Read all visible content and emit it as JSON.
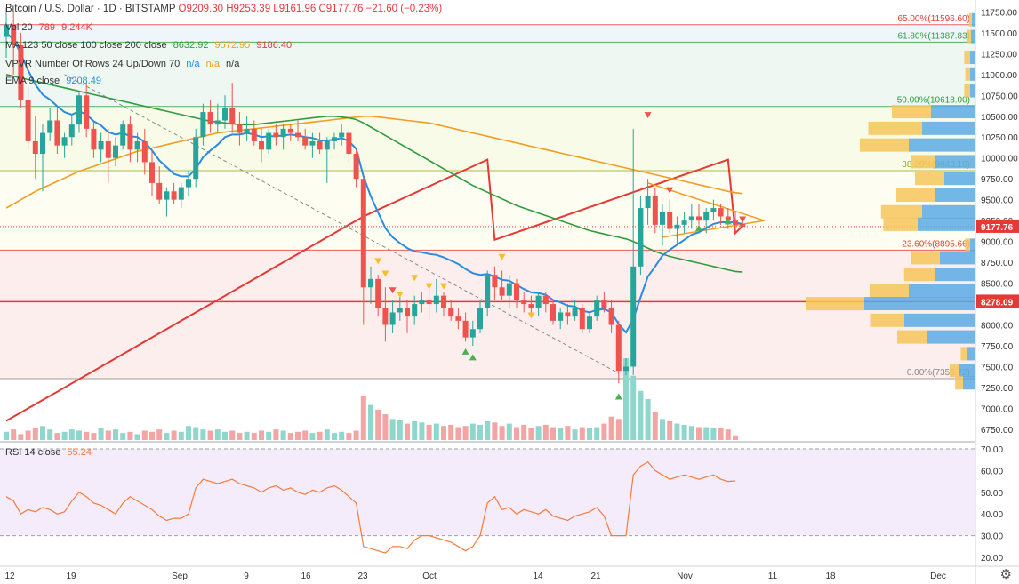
{
  "header": {
    "symbol": "Bitcoin / U.S. Dollar · 1D · BITSTAMP",
    "open": "O9209.30",
    "high": "H9253.39",
    "low": "L9161.96",
    "close": "C9177.76",
    "change": "−21.60 (−0.23%)"
  },
  "legends": {
    "vol": {
      "label": "Vol 20",
      "v1": "789",
      "v2": "9.244K"
    },
    "ma": {
      "label": "MA 123 50 close 100 close 200 close",
      "v1": "8632.92",
      "v2": "9572.95",
      "v3": "9186.40"
    },
    "vpvr": {
      "label": "VPVR Number Of Rows 24 Up/Down 70",
      "v1": "n/a",
      "v2": "n/a",
      "v3": "n/a"
    },
    "ema": {
      "label": "EMA 9 close",
      "v1": "9208.49"
    },
    "rsi": {
      "label": "RSI 14 close",
      "v1": "55.24"
    }
  },
  "colors": {
    "up": "#26a69a",
    "down": "#ef5350",
    "ma200": "#e53935",
    "ma100": "#f39c22",
    "ma50": "#2e9c3e",
    "ema": "#2a8ce0",
    "rsi": "#f57c3b"
  },
  "chart_data": {
    "type": "candlestick",
    "y_ticks": [
      "11750.00",
      "11500.00",
      "11250.00",
      "11000.00",
      "10750.00",
      "10500.00",
      "10250.00",
      "10000.00",
      "9750.00",
      "9500.00",
      "9250.00",
      "9000.00",
      "8750.00",
      "8500.00",
      "8250.00",
      "8000.00",
      "7750.00",
      "7500.00",
      "7250.00",
      "7000.00",
      "6750.00"
    ],
    "rsi_ticks": [
      "70.00",
      "60.00",
      "50.00",
      "40.00",
      "30.00",
      "20.00"
    ],
    "x_ticks": [
      "12",
      "19",
      "Sep",
      "9",
      "16",
      "23",
      "Oct",
      "14",
      "21",
      "Nov",
      "11",
      "18",
      "Dec"
    ],
    "fib_levels": [
      {
        "label": "65.00%(11596.60)",
        "price": 11596.6,
        "color": "#e53935"
      },
      {
        "label": "61.80%(11387.83)",
        "price": 11387.83,
        "color": "#2e9c3e"
      },
      {
        "label": "50.00%(10618.00)",
        "price": 10618.0,
        "color": "#2e9c3e"
      },
      {
        "label": "38.20%(9848.16)",
        "price": 9848.16,
        "color": "#9aa82a"
      },
      {
        "label": "23.60%(8895.66)",
        "price": 8895.66,
        "color": "#e53935"
      },
      {
        "label": "0.00%(7356.72)",
        "price": 7356.72,
        "color": "#888888"
      }
    ],
    "price_labels": [
      {
        "text": "9177.76",
        "price": 9177.76,
        "color": "#e53935"
      },
      {
        "text": "8278.09",
        "price": 8278.09,
        "color": "#e53935"
      }
    ],
    "candles": [
      [
        11450,
        11800,
        11200,
        11600
      ],
      [
        11600,
        11750,
        11000,
        11350
      ],
      [
        11350,
        11500,
        10600,
        10700
      ],
      [
        10700,
        10850,
        10100,
        10200
      ],
      [
        10200,
        10500,
        9750,
        10050
      ],
      [
        10050,
        10400,
        9600,
        10300
      ],
      [
        10300,
        10600,
        10200,
        10450
      ],
      [
        10450,
        10600,
        10050,
        10150
      ],
      [
        10150,
        10300,
        10000,
        10250
      ],
      [
        10250,
        10500,
        10150,
        10400
      ],
      [
        10400,
        10800,
        10300,
        10750
      ],
      [
        10750,
        10900,
        10250,
        10350
      ],
      [
        10350,
        10450,
        10000,
        10100
      ],
      [
        10100,
        10300,
        9950,
        10200
      ],
      [
        10200,
        10350,
        9700,
        10000
      ],
      [
        10000,
        10250,
        9900,
        10150
      ],
      [
        10150,
        10450,
        10100,
        10400
      ],
      [
        10400,
        10500,
        9950,
        10100
      ],
      [
        10100,
        10300,
        9950,
        10200
      ],
      [
        10200,
        10350,
        9800,
        9950
      ],
      [
        9950,
        10100,
        9550,
        9700
      ],
      [
        9700,
        9900,
        9450,
        9500
      ],
      [
        9500,
        9650,
        9300,
        9600
      ],
      [
        9600,
        9700,
        9450,
        9500
      ],
      [
        9500,
        9700,
        9400,
        9650
      ],
      [
        9650,
        9850,
        9550,
        9750
      ],
      [
        9750,
        10350,
        9650,
        10250
      ],
      [
        10250,
        10650,
        10150,
        10550
      ],
      [
        10550,
        10700,
        10300,
        10400
      ],
      [
        10400,
        10650,
        10300,
        10450
      ],
      [
        10450,
        10750,
        10350,
        10600
      ],
      [
        10600,
        10900,
        10300,
        10400
      ],
      [
        10400,
        10550,
        10150,
        10300
      ],
      [
        10300,
        10500,
        10200,
        10350
      ],
      [
        10350,
        10450,
        10150,
        10200
      ],
      [
        10200,
        10350,
        9950,
        10100
      ],
      [
        10100,
        10350,
        10050,
        10300
      ],
      [
        10300,
        10400,
        10150,
        10250
      ],
      [
        10250,
        10400,
        10100,
        10350
      ],
      [
        10350,
        10400,
        10200,
        10300
      ],
      [
        10300,
        10450,
        10200,
        10250
      ],
      [
        10250,
        10350,
        10100,
        10150
      ],
      [
        10150,
        10300,
        10000,
        10200
      ],
      [
        10200,
        10300,
        10050,
        10100
      ],
      [
        10100,
        10250,
        9700,
        10200
      ],
      [
        10200,
        10300,
        10100,
        10250
      ],
      [
        10250,
        10400,
        10150,
        10300
      ],
      [
        10300,
        10350,
        9950,
        10050
      ],
      [
        10050,
        10100,
        9650,
        9750
      ],
      [
        9750,
        9800,
        8000,
        8450
      ],
      [
        8450,
        8700,
        8250,
        8550
      ],
      [
        8550,
        8600,
        8100,
        8200
      ],
      [
        8200,
        8450,
        7800,
        8000
      ],
      [
        8000,
        8300,
        7900,
        8150
      ],
      [
        8150,
        8400,
        8050,
        8200
      ],
      [
        8200,
        8300,
        7900,
        8100
      ],
      [
        8100,
        8350,
        8000,
        8250
      ],
      [
        8250,
        8400,
        8150,
        8300
      ],
      [
        8300,
        8450,
        8050,
        8250
      ],
      [
        8250,
        8550,
        8150,
        8350
      ],
      [
        8350,
        8400,
        8100,
        8200
      ],
      [
        8200,
        8300,
        8050,
        8100
      ],
      [
        8100,
        8200,
        7950,
        8050
      ],
      [
        8050,
        8150,
        7800,
        7850
      ],
      [
        7850,
        8050,
        7750,
        7950
      ],
      [
        7950,
        8300,
        7900,
        8200
      ],
      [
        8200,
        8650,
        8100,
        8600
      ],
      [
        8600,
        8700,
        8300,
        8450
      ],
      [
        8450,
        8650,
        8300,
        8350
      ],
      [
        8350,
        8600,
        8200,
        8500
      ],
      [
        8500,
        8550,
        8200,
        8300
      ],
      [
        8300,
        8400,
        8150,
        8250
      ],
      [
        8250,
        8350,
        8150,
        8200
      ],
      [
        8200,
        8400,
        8100,
        8350
      ],
      [
        8350,
        8400,
        8150,
        8250
      ],
      [
        8250,
        8300,
        8000,
        8050
      ],
      [
        8050,
        8200,
        7950,
        8150
      ],
      [
        8150,
        8250,
        8000,
        8100
      ],
      [
        8100,
        8300,
        8050,
        8200
      ],
      [
        8200,
        8250,
        7900,
        7950
      ],
      [
        7950,
        8150,
        7900,
        8100
      ],
      [
        8100,
        8350,
        8050,
        8300
      ],
      [
        8300,
        8400,
        8150,
        8200
      ],
      [
        8200,
        8300,
        7900,
        8000
      ],
      [
        8000,
        8050,
        7300,
        7450
      ],
      [
        7450,
        7600,
        7400,
        7500
      ],
      [
        7500,
        10350,
        7400,
        8700
      ],
      [
        8700,
        9550,
        8600,
        9400
      ],
      [
        9400,
        9750,
        9200,
        9550
      ],
      [
        9550,
        9650,
        9100,
        9200
      ],
      [
        9200,
        9450,
        8950,
        9350
      ],
      [
        9350,
        9500,
        9100,
        9150
      ],
      [
        9150,
        9300,
        8950,
        9200
      ],
      [
        9200,
        9350,
        9100,
        9250
      ],
      [
        9250,
        9450,
        9150,
        9300
      ],
      [
        9300,
        9450,
        9200,
        9250
      ],
      [
        9250,
        9400,
        9100,
        9350
      ],
      [
        9350,
        9500,
        9250,
        9400
      ],
      [
        9400,
        9450,
        9200,
        9300
      ],
      [
        9300,
        9400,
        9150,
        9250
      ],
      [
        9250,
        9350,
        9100,
        9200
      ],
      [
        9209.3,
        9253.39,
        9161.96,
        9177.76
      ]
    ],
    "volumes": [
      7,
      9,
      5,
      8,
      10,
      12,
      9,
      6,
      7,
      9,
      8,
      7,
      6,
      10,
      8,
      9,
      6,
      7,
      5,
      8,
      7,
      9,
      6,
      8,
      7,
      12,
      11,
      9,
      8,
      9,
      7,
      8,
      6,
      7,
      6,
      8,
      7,
      9,
      8,
      6,
      7,
      8,
      6,
      7,
      9,
      6,
      7,
      6,
      8,
      38,
      30,
      26,
      22,
      18,
      17,
      14,
      16,
      15,
      13,
      14,
      12,
      13,
      11,
      12,
      14,
      13,
      16,
      15,
      12,
      14,
      11,
      13,
      10,
      12,
      13,
      11,
      10,
      12,
      9,
      11,
      10,
      11,
      14,
      20,
      18,
      70,
      55,
      42,
      35,
      24,
      18,
      16,
      14,
      13,
      12,
      11,
      11,
      10,
      10,
      9,
      4
    ],
    "rsi": [
      48,
      46,
      40,
      42,
      41,
      43,
      42,
      40,
      41,
      46,
      50,
      48,
      45,
      44,
      42,
      40,
      45,
      48,
      46,
      44,
      42,
      39,
      37,
      38,
      38,
      40,
      52,
      56,
      55,
      54,
      55,
      56,
      54,
      53,
      52,
      50,
      52,
      53,
      51,
      52,
      50,
      49,
      51,
      50,
      52,
      53,
      51,
      48,
      45,
      25,
      24,
      23,
      22,
      25,
      25,
      24,
      28,
      30,
      30,
      29,
      28,
      27,
      25,
      23,
      25,
      30,
      45,
      48,
      42,
      43,
      40,
      42,
      41,
      40,
      42,
      39,
      38,
      37,
      39,
      40,
      41,
      43,
      39,
      30,
      30,
      30,
      58,
      62,
      64,
      60,
      58,
      56,
      57,
      58,
      57,
      56,
      57,
      58,
      56,
      55,
      55.24
    ],
    "ema9": [
      11500,
      11420,
      11250,
      11050,
      10880,
      10760,
      10700,
      10620,
      10550,
      10520,
      10560,
      10520,
      10440,
      10390,
      10310,
      10280,
      10300,
      10260,
      10250,
      10190,
      10090,
      9970,
      9890,
      9810,
      9780,
      9780,
      9870,
      10010,
      10090,
      10160,
      10250,
      10280,
      10280,
      10300,
      10280,
      10250,
      10260,
      10260,
      10270,
      10280,
      10270,
      10250,
      10240,
      10210,
      10210,
      10220,
      10240,
      10200,
      10110,
      9780,
      9540,
      9350,
      9160,
      9050,
      8980,
      8920,
      8880,
      8870,
      8850,
      8840,
      8810,
      8770,
      8730,
      8670,
      8620,
      8600,
      8610,
      8580,
      8540,
      8530,
      8480,
      8430,
      8390,
      8380,
      8360,
      8300,
      8270,
      8230,
      8220,
      8170,
      8150,
      8180,
      8190,
      8150,
      8010,
      7910,
      8070,
      8330,
      8580,
      8700,
      8830,
      8900,
      8960,
      9020,
      9080,
      9110,
      9160,
      9210,
      9230,
      9230,
      9230,
      9208.49
    ],
    "ma50": [
      11000,
      10980,
      10960,
      10940,
      10920,
      10900,
      10880,
      10860,
      10840,
      10820,
      10800,
      10780,
      10760,
      10740,
      10720,
      10700,
      10680,
      10660,
      10640,
      10620,
      10600,
      10580,
      10560,
      10540,
      10520,
      10500,
      10480,
      10460,
      10440,
      10430,
      10420,
      10410,
      10400,
      10400,
      10400,
      10410,
      10420,
      10430,
      10440,
      10450,
      10460,
      10470,
      10480,
      10490,
      10500,
      10500,
      10490,
      10480,
      10460,
      10420,
      10370,
      10320,
      10270,
      10220,
      10170,
      10120,
      10070,
      10020,
      9970,
      9920,
      9870,
      9820,
      9770,
      9720,
      9670,
      9630,
      9590,
      9550,
      9510,
      9470,
      9430,
      9400,
      9370,
      9340,
      9310,
      9280,
      9250,
      9220,
      9190,
      9160,
      9130,
      9110,
      9090,
      9070,
      9050,
      9030,
      9000,
      8960,
      8920,
      8880,
      8850,
      8820,
      8800,
      8780,
      8760,
      8740,
      8720,
      8700,
      8680,
      8660,
      8640,
      8632.92
    ],
    "ma100": [
      9400,
      9450,
      9500,
      9550,
      9600,
      9640,
      9680,
      9720,
      9760,
      9800,
      9840,
      9870,
      9900,
      9930,
      9960,
      9990,
      10020,
      10050,
      10080,
      10100,
      10120,
      10140,
      10160,
      10180,
      10200,
      10220,
      10240,
      10260,
      10280,
      10300,
      10310,
      10320,
      10330,
      10340,
      10350,
      10360,
      10370,
      10380,
      10390,
      10400,
      10410,
      10420,
      10430,
      10440,
      10450,
      10460,
      10470,
      10480,
      10490,
      10500,
      10500,
      10490,
      10480,
      10470,
      10460,
      10450,
      10440,
      10430,
      10420,
      10400,
      10380,
      10360,
      10340,
      10320,
      10300,
      10280,
      10260,
      10240,
      10220,
      10200,
      10180,
      10160,
      10140,
      10120,
      10100,
      10080,
      10060,
      10040,
      10020,
      10000,
      9980,
      9960,
      9940,
      9920,
      9900,
      9880,
      9860,
      9840,
      9820,
      9800,
      9780,
      9760,
      9740,
      9720,
      9700,
      9680,
      9660,
      9640,
      9620,
      9600,
      9585,
      9572.95
    ],
    "ma200": [
      6850,
      6900,
      6950,
      7000,
      7050,
      7100,
      7150,
      7200,
      7250,
      7300,
      7350,
      7400,
      7450,
      7500,
      7550,
      7600,
      7650,
      7700,
      7750,
      7800,
      7850,
      7900,
      7950,
      8000,
      8050,
      8100,
      8150,
      8200,
      8250,
      8300,
      8350,
      8400,
      8450,
      8500,
      8550,
      8600,
      8650,
      8700,
      8750,
      8800,
      8850,
      8900,
      8950,
      9000,
      9050,
      9100,
      9150,
      9200,
      9250,
      9300,
      9340,
      9380,
      9420,
      9460,
      9500,
      9540,
      9580,
      9620,
      9660,
      9700,
      9740,
      9780,
      9820,
      9860,
      9900,
      9940,
      9980,
      9020,
      9050,
      9080,
      9110,
      9140,
      9170,
      9200,
      9230,
      9260,
      9290,
      9320,
      9350,
      9380,
      9410,
      9440,
      9470,
      9500,
      9530,
      9560,
      9590,
      9620,
      9650,
      9680,
      9710,
      9740,
      9770,
      9800,
      9830,
      9860,
      9890,
      9920,
      9950,
      9980,
      9100,
      9186.4
    ]
  }
}
